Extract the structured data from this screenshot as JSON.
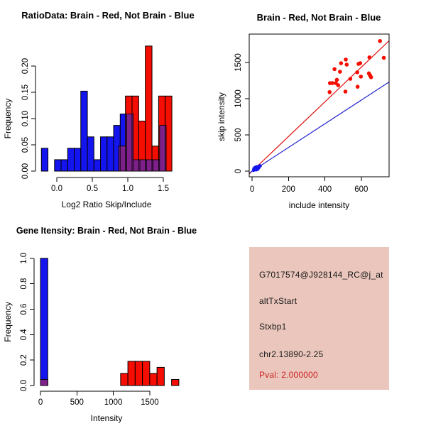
{
  "window": {
    "background": "#FFFFFF"
  },
  "colors": {
    "red": "#F40D00",
    "blue": "#1414EE",
    "purple": "#7E2089",
    "line_red": "#E01010",
    "line_blue": "#2222CC",
    "axis": "#000000",
    "text": "#000000"
  },
  "chart_data": [
    {
      "type": "bar",
      "subtype": "overlaid-frequency-histogram",
      "title": "RatioData: Brain - Red, Not Brain - Blue",
      "xlabel": "Log2 Ratio Skip/Include",
      "ylabel": "Frequency",
      "xlim": [
        -0.3,
        1.7
      ],
      "ylim": [
        0,
        0.2514
      ],
      "xticks": [
        0.0,
        0.5,
        1.0,
        1.5
      ],
      "xtick_labels": [
        "0.0",
        "0.5",
        "1.0",
        "1.5"
      ],
      "yticks": [
        0.0,
        0.05,
        0.1,
        0.15,
        0.2
      ],
      "ytick_labels": [
        "0.00",
        "0.05",
        "0.10",
        "0.15",
        "0.20"
      ],
      "grid": false,
      "series": [
        {
          "name": "Not Brain",
          "color_key": "blue",
          "bin_start": -0.217,
          "bin_width": 0.0925,
          "freq": [
            0.0435,
            0,
            0.0217,
            0.0217,
            0.0435,
            0.0435,
            0.1522,
            0.0652,
            0.0217,
            0.0652,
            0.0652,
            0.087,
            0.1087,
            0.1087,
            0.0217,
            0.0217,
            0.0217,
            0.0217,
            0.087
          ]
        },
        {
          "name": "Brain",
          "color_key": "red",
          "bin_start": 0.873,
          "bin_width": 0.0935,
          "freq": [
            0.0476,
            0.1429,
            0.1429,
            0.0952,
            0.2381,
            0.0476,
            0.1429,
            0.1429
          ]
        }
      ],
      "overlap_color_key": "purple"
    },
    {
      "type": "scatter",
      "title": "Brain - Red, Not Brain - Blue",
      "xlabel": "include intensity",
      "ylabel": "skip intensity",
      "xlim": [
        -16,
        753
      ],
      "ylim": [
        -78,
        1892
      ],
      "xticks": [
        0,
        200,
        400,
        600
      ],
      "xtick_labels": [
        "0",
        "200",
        "400",
        "600"
      ],
      "yticks": [
        0,
        500,
        1000,
        1500
      ],
      "ytick_labels": [
        "0",
        "500",
        "1000",
        "1500"
      ],
      "grid": false,
      "box": true,
      "series": [
        {
          "name": "Brain",
          "color_key": "red",
          "marker_radius": 2.8,
          "points": [
            [
              703,
              1796
            ],
            [
              724,
              1565
            ],
            [
              645,
              1570
            ],
            [
              515,
              1540
            ],
            [
              489,
              1490
            ],
            [
              520,
              1470
            ],
            [
              594,
              1490
            ],
            [
              585,
              1480
            ],
            [
              453,
              1408
            ],
            [
              483,
              1372
            ],
            [
              578,
              1365
            ],
            [
              642,
              1350
            ],
            [
              648,
              1322
            ],
            [
              654,
              1297
            ],
            [
              598,
              1305
            ],
            [
              540,
              1274
            ],
            [
              466,
              1260
            ],
            [
              428,
              1215
            ],
            [
              441,
              1215
            ],
            [
              460,
              1215
            ],
            [
              580,
              1165
            ],
            [
              473,
              1186
            ],
            [
              513,
              1098
            ],
            [
              426,
              1091
            ]
          ]
        },
        {
          "name": "Not Brain",
          "color_key": "blue",
          "marker_radius": 2.4,
          "points": [
            [
              8,
              12
            ],
            [
              12,
              22
            ],
            [
              15,
              30
            ],
            [
              18,
              38
            ],
            [
              20,
              45
            ],
            [
              24,
              32
            ],
            [
              26,
              52
            ],
            [
              28,
              40
            ],
            [
              30,
              58
            ],
            [
              33,
              47
            ],
            [
              35,
              64
            ],
            [
              38,
              54
            ],
            [
              40,
              70
            ],
            [
              22,
              18
            ],
            [
              16,
              50
            ],
            [
              30,
              26
            ],
            [
              36,
              44
            ],
            [
              25,
              60
            ],
            [
              44,
              72
            ],
            [
              10,
              35
            ]
          ]
        }
      ],
      "lines": [
        {
          "name": "brain-fit",
          "color_key": "line_red",
          "slope": 2.39,
          "intercept": 0
        },
        {
          "name": "notbrain-fit",
          "color_key": "line_blue",
          "slope": 1.634,
          "intercept": 0
        }
      ]
    },
    {
      "type": "bar",
      "subtype": "overlaid-frequency-histogram",
      "title": "Gene Itensity: Brain - Red, Not Brain - Blue",
      "xlabel": "Intensity",
      "ylabel": "Frequency",
      "xlim": [
        -88,
        1901
      ],
      "ylim": [
        0,
        1.038
      ],
      "xticks": [
        0,
        500,
        1000,
        1500
      ],
      "xtick_labels": [
        "0",
        "500",
        "1000",
        "1500"
      ],
      "yticks": [
        0.0,
        0.2,
        0.4,
        0.6,
        0.8,
        1.0
      ],
      "ytick_labels": [
        "0.0",
        "0.2",
        "0.4",
        "0.6",
        "0.8",
        "1.0"
      ],
      "grid": false,
      "series": [
        {
          "name": "Not Brain",
          "color_key": "blue",
          "bin_start": 0,
          "bin_width": 100,
          "freq": [
            1.0
          ]
        },
        {
          "name": "Brain",
          "color_key": "red",
          "bin_start": 0,
          "bin_width": 100,
          "freq": [
            0.0476,
            0,
            0,
            0,
            0,
            0,
            0,
            0,
            0,
            0,
            0,
            0.0952,
            0.1905,
            0.1905,
            0.1905,
            0.0952,
            0.1429,
            0,
            0.0476
          ]
        }
      ],
      "overlap_color_key": "purple"
    }
  ],
  "info_panel": {
    "bg": "#EAC6BC",
    "lines": [
      {
        "text": "G7017574@J928144_RC@j_at",
        "color": "#1A1A1A"
      },
      {
        "text": "altTxStart",
        "color": "#1A1A1A"
      },
      {
        "text": "Stxbp1",
        "color": "#1A1A1A"
      },
      {
        "text": "chr2.13890-2.25",
        "color": "#1A1A1A"
      },
      {
        "text": "Pval: 2.000000",
        "color": "#CC2222"
      }
    ]
  }
}
